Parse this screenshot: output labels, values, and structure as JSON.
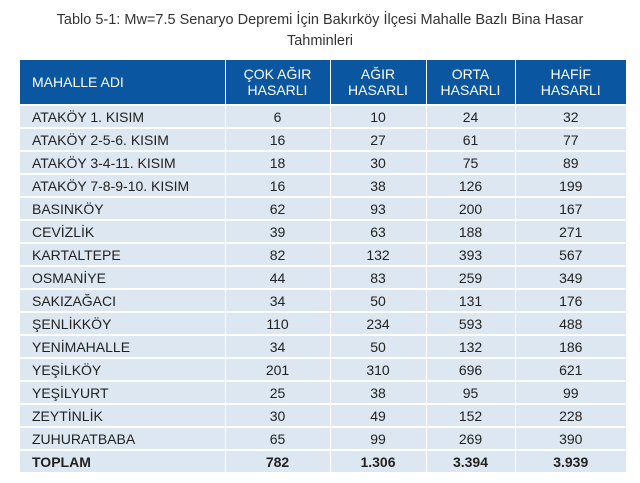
{
  "title_line1": "Tablo 5-1: Mw=7.5 Senaryo Depremi İçin Bakırköy İlçesi Mahalle Bazlı Bina Hasar",
  "title_line2": "Tahminleri",
  "headers": [
    {
      "line1": "MAHALLE ADI",
      "line2": ""
    },
    {
      "line1": "ÇOK AĞIR",
      "line2": "HASARLI"
    },
    {
      "line1": "AĞIR",
      "line2": "HASARLI"
    },
    {
      "line1": "ORTA",
      "line2": "HASARLI"
    },
    {
      "line1": "HAFİF",
      "line2": "HASARLI"
    }
  ],
  "rows": [
    [
      "ATAKÖY 1. KISIM",
      "6",
      "10",
      "24",
      "32"
    ],
    [
      "ATAKÖY 2-5-6. KISIM",
      "16",
      "27",
      "61",
      "77"
    ],
    [
      "ATAKÖY 3-4-11. KISIM",
      "18",
      "30",
      "75",
      "89"
    ],
    [
      "ATAKÖY 7-8-9-10. KISIM",
      "16",
      "38",
      "126",
      "199"
    ],
    [
      "BASINKÖY",
      "62",
      "93",
      "200",
      "167"
    ],
    [
      "CEVİZLİK",
      "39",
      "63",
      "188",
      "271"
    ],
    [
      "KARTALTEPE",
      "82",
      "132",
      "393",
      "567"
    ],
    [
      "OSMANİYE",
      "44",
      "83",
      "259",
      "349"
    ],
    [
      "SAKIZAĞACI",
      "34",
      "50",
      "131",
      "176"
    ],
    [
      "ŞENLİKKÖY",
      "110",
      "234",
      "593",
      "488"
    ],
    [
      "YENİMAHALLE",
      "34",
      "50",
      "132",
      "186"
    ],
    [
      "YEŞİLKÖY",
      "201",
      "310",
      "696",
      "621"
    ],
    [
      "YEŞİLYURT",
      "25",
      "38",
      "95",
      "99"
    ],
    [
      "ZEYTİNLİK",
      "30",
      "49",
      "152",
      "228"
    ],
    [
      "ZUHURATBABA",
      "65",
      "99",
      "269",
      "390"
    ]
  ],
  "total": [
    "TOPLAM",
    "782",
    "1.306",
    "3.394",
    "3.939"
  ],
  "colors": {
    "header_bg": "#0b56a0",
    "row_bg": "#dde7f1"
  }
}
